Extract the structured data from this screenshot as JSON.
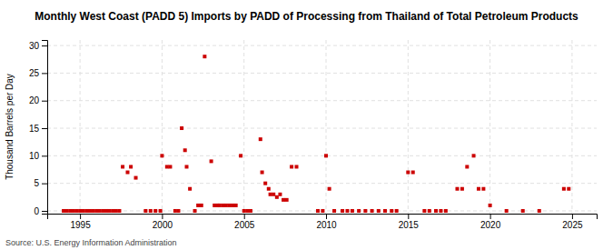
{
  "chart_data": {
    "type": "scatter",
    "title": "Monthly West Coast (PADD 5) Imports by PADD of Processing from Thailand of Total Petroleum Products",
    "ylabel": "Thousand Barrels per Day",
    "source": "Source: U.S. Energy Information Administration",
    "color": "#cc0000",
    "marker": "square",
    "grid": true,
    "xlim": [
      1993.0,
      2026.5
    ],
    "ylim": [
      -0.5,
      31
    ],
    "xticks": [
      1995,
      2000,
      2005,
      2010,
      2015,
      2020,
      2025
    ],
    "yticks": [
      0,
      5,
      10,
      15,
      20,
      25,
      30
    ],
    "x": [
      1994.0,
      1994.2,
      1994.4,
      1994.6,
      1994.8,
      1995.0,
      1995.2,
      1995.4,
      1995.6,
      1995.8,
      1996.0,
      1996.2,
      1996.4,
      1996.6,
      1996.8,
      1997.0,
      1997.2,
      1997.4,
      1997.6,
      1997.9,
      1998.1,
      1998.4,
      1999.0,
      1999.3,
      1999.6,
      1999.9,
      2000.0,
      2000.3,
      2000.5,
      2000.8,
      2001.0,
      2001.2,
      2001.4,
      2001.5,
      2001.7,
      2002.0,
      2002.2,
      2002.4,
      2002.6,
      2003.0,
      2003.2,
      2003.4,
      2003.5,
      2003.7,
      2003.9,
      2004.1,
      2004.3,
      2004.5,
      2004.8,
      2005.0,
      2005.2,
      2005.4,
      2006.0,
      2006.1,
      2006.3,
      2006.5,
      2006.6,
      2006.8,
      2007.0,
      2007.2,
      2007.4,
      2007.6,
      2007.9,
      2008.2,
      2009.5,
      2009.8,
      2010.0,
      2010.2,
      2010.5,
      2011.0,
      2011.3,
      2011.6,
      2012.0,
      2012.4,
      2012.8,
      2013.2,
      2013.6,
      2014.0,
      2014.3,
      2015.0,
      2015.3,
      2016.0,
      2016.3,
      2016.7,
      2017.0,
      2017.3,
      2018.0,
      2018.3,
      2018.6,
      2019.0,
      2019.3,
      2019.6,
      2020.0,
      2021.0,
      2022.0,
      2023.0,
      2024.5,
      2024.8
    ],
    "values": [
      0,
      0,
      0,
      0,
      0,
      0,
      0,
      0,
      0,
      0,
      0,
      0,
      0,
      0,
      0,
      0,
      0,
      0,
      8,
      7,
      8,
      6,
      0,
      0,
      0,
      0,
      10,
      8,
      8,
      0,
      0,
      15,
      11,
      8,
      4,
      0,
      1,
      1,
      28,
      9,
      1,
      1,
      1,
      1,
      1,
      1,
      1,
      1,
      10,
      0,
      0,
      0,
      13,
      7,
      5,
      4,
      3,
      3,
      2.5,
      3,
      2,
      2,
      8,
      8,
      0,
      0,
      10,
      4,
      0,
      0,
      0,
      0,
      0,
      0,
      0,
      0,
      0,
      0,
      0,
      7,
      7,
      0,
      0,
      0,
      0,
      0,
      4,
      4,
      8,
      10,
      4,
      4,
      1,
      0,
      0,
      0,
      4,
      4
    ]
  }
}
